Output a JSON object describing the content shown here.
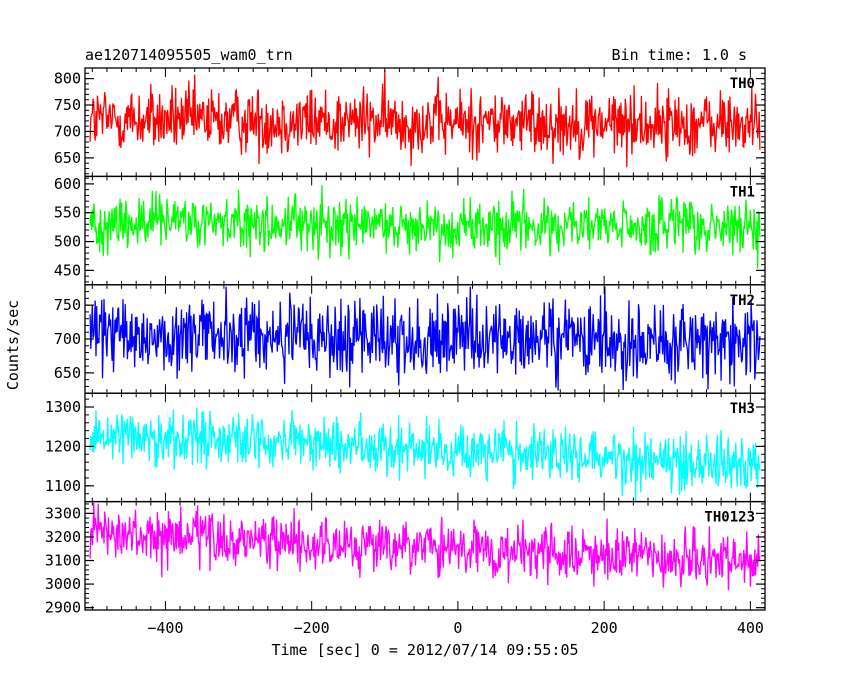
{
  "title_left": "ae120714095505_wam0_trn",
  "title_right": "Bin time: 1.0 s",
  "chart_data": {
    "type": "line",
    "xlabel": "Time [sec] 0 = 2012/07/14 09:55:05",
    "ylabel": "Counts/sec",
    "xlim": [
      -510,
      420
    ],
    "x_ticks": [
      -400,
      -200,
      0,
      200,
      400
    ],
    "bin_time_s": 1.0,
    "grid": false,
    "panels": [
      {
        "name": "TH0",
        "color": "#ff0000",
        "ylim": [
          615,
          820
        ],
        "y_ticks": [
          650,
          700,
          750,
          800
        ],
        "mean": 718,
        "trend": -10,
        "noise": 32
      },
      {
        "name": "TH1",
        "color": "#00ff00",
        "ylim": [
          425,
          613
        ],
        "y_ticks": [
          450,
          500,
          550,
          600
        ],
        "mean": 528,
        "trend": -10,
        "noise": 25
      },
      {
        "name": "TH2",
        "color": "#0000ff",
        "ylim": [
          620,
          780
        ],
        "y_ticks": [
          650,
          700,
          750
        ],
        "mean": 700,
        "trend": -12,
        "noise": 30
      },
      {
        "name": "TH3",
        "color": "#00ffff",
        "ylim": [
          1060,
          1335
        ],
        "y_ticks": [
          1100,
          1200,
          1300
        ],
        "mean": 1195,
        "trend": -80,
        "noise": 36
      },
      {
        "name": "TH0123",
        "color": "#ff00ff",
        "ylim": [
          2890,
          3350
        ],
        "y_ticks": [
          2900,
          3000,
          3100,
          3200,
          3300
        ],
        "mean": 3150,
        "trend": -120,
        "noise": 58
      }
    ]
  }
}
